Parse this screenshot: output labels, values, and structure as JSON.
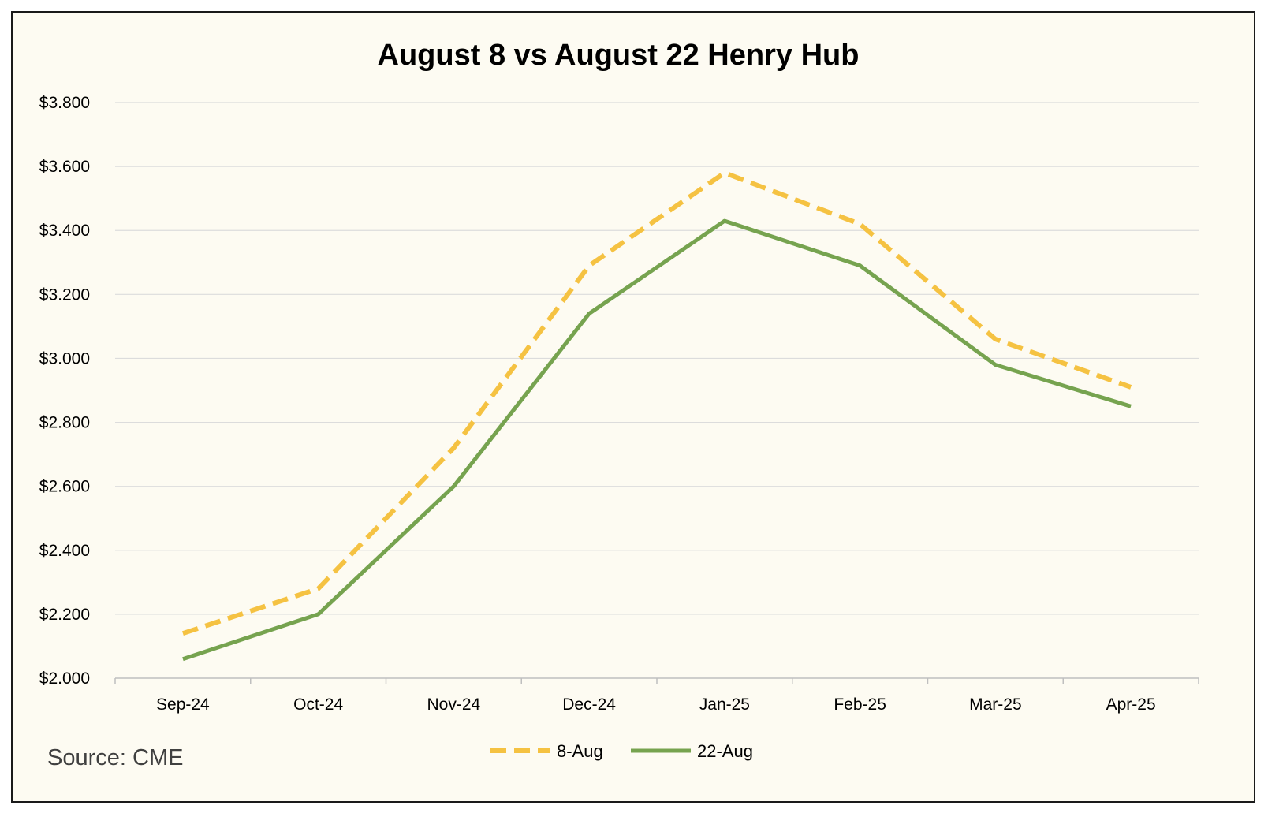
{
  "chart_data": {
    "type": "line",
    "title": "August 8 vs August 22 Henry Hub",
    "xlabel": "",
    "ylabel": "",
    "categories": [
      "Sep-24",
      "Oct-24",
      "Nov-24",
      "Dec-24",
      "Jan-25",
      "Feb-25",
      "Mar-25",
      "Apr-25"
    ],
    "ylim": [
      2.0,
      3.8
    ],
    "yticks": [
      2.0,
      2.2,
      2.4,
      2.6,
      2.8,
      3.0,
      3.2,
      3.4,
      3.6,
      3.8
    ],
    "ytick_labels": [
      "$2.000",
      "$2.200",
      "$2.400",
      "$2.600",
      "$2.800",
      "$3.000",
      "$3.200",
      "$3.400",
      "$3.600",
      "$3.800"
    ],
    "grid": true,
    "legend_position": "bottom",
    "series": [
      {
        "name": "8-Aug",
        "color": "#f5c242",
        "dash": "dashed",
        "values": [
          2.14,
          2.28,
          2.72,
          3.29,
          3.58,
          3.42,
          3.06,
          2.91
        ]
      },
      {
        "name": "22-Aug",
        "color": "#76a34f",
        "dash": "solid",
        "values": [
          2.06,
          2.2,
          2.6,
          3.14,
          3.43,
          3.29,
          2.98,
          2.85
        ]
      }
    ],
    "annotations": [
      {
        "text": "Source: CME"
      }
    ]
  },
  "colors": {
    "background": "#fdfbf2",
    "gridline": "#dcdcdc",
    "axis": "#bfbfbf",
    "border": "#1a1a1a"
  }
}
